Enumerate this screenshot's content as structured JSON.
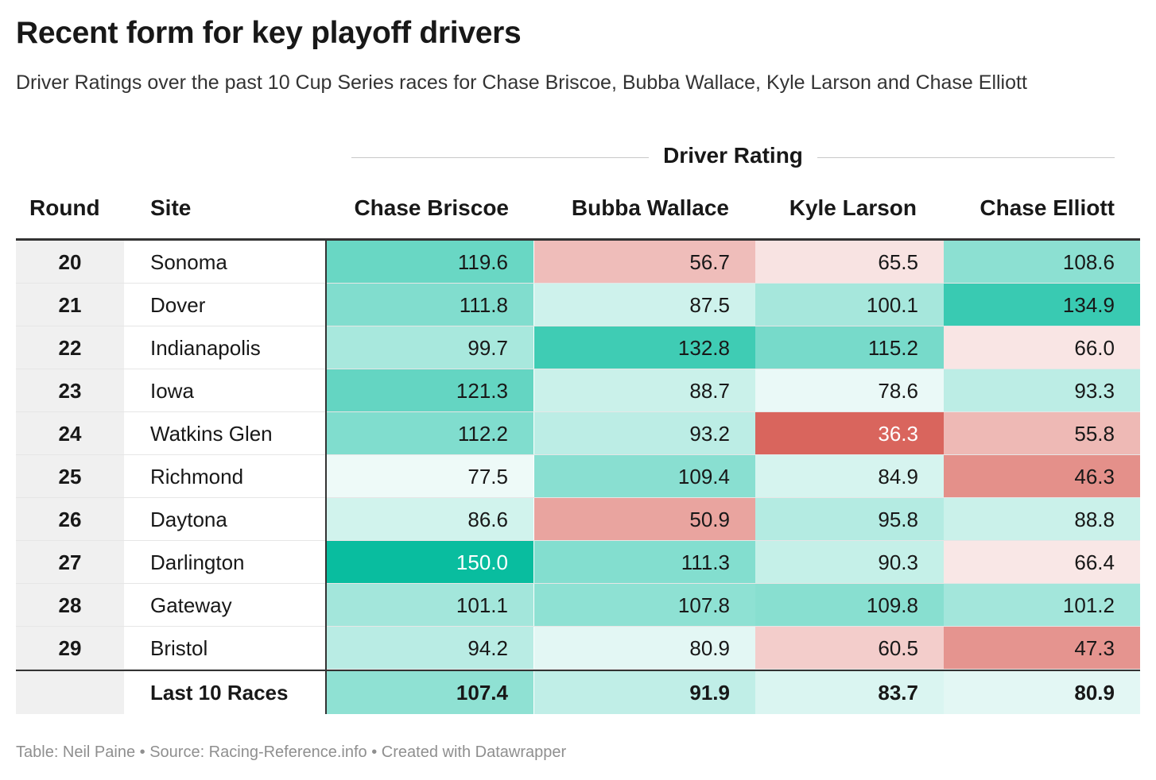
{
  "title": "Recent form for key playoff drivers",
  "subtitle": "Driver Ratings over the past 10 Cup Series races for Chase Briscoe, Bubba Wallace, Kyle Larson and Chase Elliott",
  "spanner_label": "Driver Rating",
  "footer": "Table: Neil Paine • Source: Racing-Reference.info • Created with Datawrapper",
  "colors": {
    "high": "#09bd9f",
    "low": "#d9655d",
    "neutral": "#ffffff",
    "round_bg": "#f0f0f0"
  },
  "chart_data": {
    "type": "table",
    "columns": [
      "Round",
      "Site",
      "Chase Briscoe",
      "Bubba Wallace",
      "Kyle Larson",
      "Chase Elliott"
    ],
    "rows": [
      {
        "round": "20",
        "site": "Sonoma",
        "values": [
          "119.6",
          "56.7",
          "65.5",
          "108.6"
        ]
      },
      {
        "round": "21",
        "site": "Dover",
        "values": [
          "111.8",
          "87.5",
          "100.1",
          "134.9"
        ]
      },
      {
        "round": "22",
        "site": "Indianapolis",
        "values": [
          "99.7",
          "132.8",
          "115.2",
          "66.0"
        ]
      },
      {
        "round": "23",
        "site": "Iowa",
        "values": [
          "121.3",
          "88.7",
          "78.6",
          "93.3"
        ]
      },
      {
        "round": "24",
        "site": "Watkins Glen",
        "values": [
          "112.2",
          "93.2",
          "36.3",
          "55.8"
        ]
      },
      {
        "round": "25",
        "site": "Richmond",
        "values": [
          "77.5",
          "109.4",
          "84.9",
          "46.3"
        ]
      },
      {
        "round": "26",
        "site": "Daytona",
        "values": [
          "86.6",
          "50.9",
          "95.8",
          "88.8"
        ]
      },
      {
        "round": "27",
        "site": "Darlington",
        "values": [
          "150.0",
          "111.3",
          "90.3",
          "66.4"
        ]
      },
      {
        "round": "28",
        "site": "Gateway",
        "values": [
          "101.1",
          "107.8",
          "109.8",
          "101.2"
        ]
      },
      {
        "round": "29",
        "site": "Bristol",
        "values": [
          "94.2",
          "80.9",
          "60.5",
          "47.3"
        ]
      }
    ],
    "total": {
      "round": "",
      "site": "Last 10 Races",
      "values": [
        "107.4",
        "91.9",
        "83.7",
        "80.9"
      ]
    },
    "color_scale": {
      "min": 36.3,
      "mid": 72.0,
      "max": 150.0
    }
  }
}
